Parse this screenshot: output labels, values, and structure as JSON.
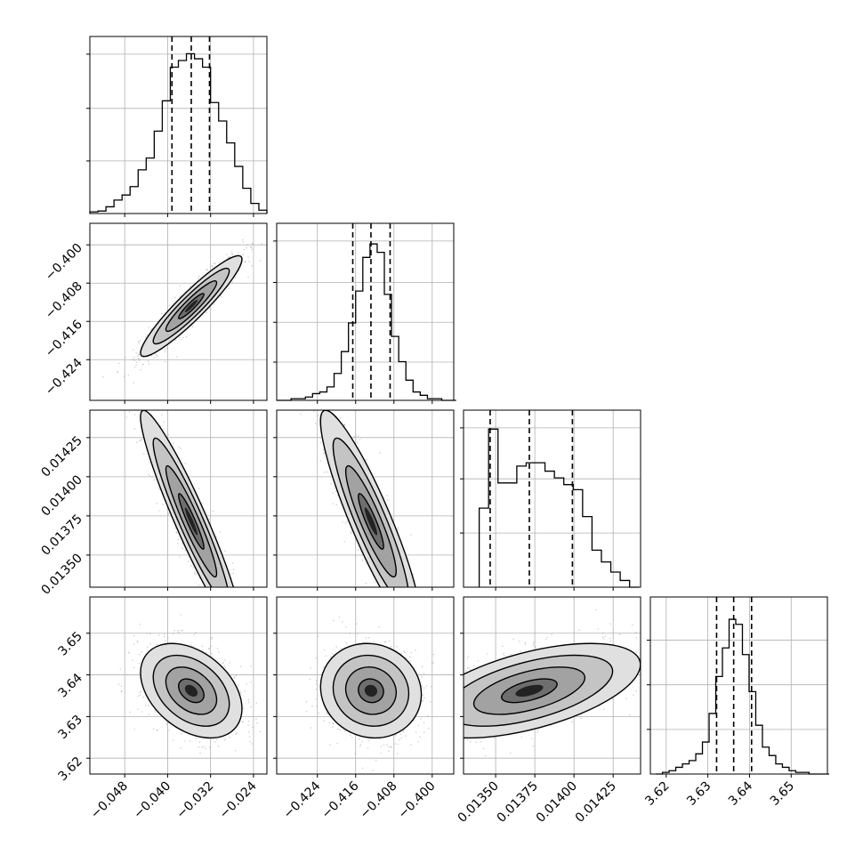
{
  "chart_data": {
    "type": "corner",
    "title": "",
    "parameters": [
      {
        "name": "",
        "range": [
          -0.0545,
          -0.0215
        ],
        "ticks": [
          -0.048,
          -0.04,
          -0.032,
          -0.024
        ],
        "tick_labels": [
          "−0.048",
          "−0.040",
          "−0.032",
          "−0.024"
        ],
        "quantiles": [
          -0.0392,
          -0.0356,
          -0.0322
        ],
        "hist_max": 1.0,
        "hist_ticks": [
          0.33,
          0.66,
          1.0
        ],
        "hist_x": [
          -0.0545,
          -0.053,
          -0.0515,
          -0.05,
          -0.0485,
          -0.047,
          -0.0455,
          -0.044,
          -0.0425,
          -0.041,
          -0.0395,
          -0.038,
          -0.0365,
          -0.035,
          -0.0335,
          -0.032,
          -0.0305,
          -0.029,
          -0.0275,
          -0.026,
          -0.0245,
          -0.023
        ],
        "hist_counts": [
          0.01,
          0.015,
          0.04,
          0.08,
          0.11,
          0.16,
          0.26,
          0.33,
          0.49,
          0.67,
          0.87,
          0.91,
          0.95,
          0.92,
          0.87,
          0.66,
          0.55,
          0.42,
          0.28,
          0.15,
          0.06,
          0.02
        ]
      },
      {
        "name": "",
        "range": [
          -0.4325,
          -0.3955
        ],
        "ticks": [
          -0.424,
          -0.416,
          -0.408,
          -0.4
        ],
        "tick_labels": [
          "−0.424",
          "−0.416",
          "−0.408",
          "−0.400"
        ],
        "quantiles": [
          -0.4166,
          -0.4128,
          -0.4088
        ],
        "hist_max": 1.0,
        "hist_ticks": [
          0.24,
          0.49,
          0.74,
          1.0
        ],
        "hist_x": [
          -0.4325,
          -0.431,
          -0.4295,
          -0.428,
          -0.4265,
          -0.425,
          -0.4235,
          -0.422,
          -0.4205,
          -0.419,
          -0.4175,
          -0.416,
          -0.4145,
          -0.413,
          -0.4115,
          -0.41,
          -0.4085,
          -0.407,
          -0.4055,
          -0.404,
          -0.4025,
          -0.401,
          -0.3995,
          -0.398,
          -0.3965
        ],
        "hist_counts": [
          0.0,
          0.0,
          0.01,
          0.01,
          0.02,
          0.04,
          0.05,
          0.08,
          0.16,
          0.29,
          0.46,
          0.65,
          0.85,
          0.93,
          0.88,
          0.63,
          0.38,
          0.23,
          0.12,
          0.05,
          0.03,
          0.01,
          0.01,
          0.0,
          0.0
        ]
      },
      {
        "name": "",
        "range": [
          0.013295,
          0.014425
        ],
        "ticks": [
          0.0135,
          0.01375,
          0.014,
          0.01425
        ],
        "tick_labels": [
          "0.01350",
          "0.01375",
          "0.01400",
          "0.01425"
        ],
        "quantiles": [
          0.013465,
          0.013715,
          0.01399
        ],
        "hist_max": 1.0,
        "hist_ticks": [
          0.34,
          0.68,
          1.0
        ],
        "hist_x": [
          0.013395,
          0.013455,
          0.013515,
          0.013575,
          0.013635,
          0.013695,
          0.013755,
          0.013815,
          0.013875,
          0.013935,
          0.013995,
          0.014055,
          0.014115,
          0.014175,
          0.014235,
          0.014295,
          0.014355
        ],
        "hist_counts": [
          0.47,
          0.94,
          0.62,
          0.62,
          0.72,
          0.74,
          0.74,
          0.69,
          0.65,
          0.61,
          0.58,
          0.42,
          0.22,
          0.15,
          0.09,
          0.04,
          0.0
        ]
      },
      {
        "name": "",
        "range": [
          3.6162,
          3.6587
        ],
        "ticks": [
          3.62,
          3.63,
          3.64,
          3.65
        ],
        "tick_labels": [
          "3.62",
          "3.63",
          "3.64",
          "3.65"
        ],
        "quantiles": [
          3.6321,
          3.6362,
          3.6405
        ],
        "hist_max": 1.0,
        "hist_ticks": [
          0.28,
          0.56,
          0.84
        ],
        "hist_x": [
          3.6175,
          3.6191,
          3.6207,
          3.6223,
          3.6239,
          3.6255,
          3.6271,
          3.6287,
          3.6303,
          3.6319,
          3.6335,
          3.6351,
          3.6367,
          3.6383,
          3.6399,
          3.6415,
          3.6431,
          3.6447,
          3.6463,
          3.6479,
          3.6495,
          3.6511,
          3.6527,
          3.6543,
          3.6559,
          3.6575
        ],
        "hist_counts": [
          0.0,
          0.01,
          0.02,
          0.04,
          0.06,
          0.08,
          0.12,
          0.19,
          0.36,
          0.58,
          0.75,
          0.92,
          0.89,
          0.71,
          0.49,
          0.29,
          0.16,
          0.11,
          0.06,
          0.04,
          0.02,
          0.01,
          0.01,
          0.0,
          0.0,
          0.0
        ]
      }
    ],
    "correlations": [
      {
        "pair": [
          0,
          1
        ],
        "rho": 0.93
      },
      {
        "pair": [
          0,
          2
        ],
        "rho": -0.94
      },
      {
        "pair": [
          1,
          2
        ],
        "rho": -0.9
      },
      {
        "pair": [
          0,
          3
        ],
        "rho": -0.38
      },
      {
        "pair": [
          1,
          3
        ],
        "rho": -0.08
      },
      {
        "pair": [
          2,
          3
        ],
        "rho": 0.55
      }
    ],
    "contour_levels": [
      0.5,
      1.0,
      1.5,
      2.0
    ],
    "grid": true,
    "colors": {
      "hist_line": "#000000",
      "quantile_line": "#000000",
      "points": "#9a9a9a",
      "grid": "#b0b0b0",
      "density": "#000000"
    }
  }
}
